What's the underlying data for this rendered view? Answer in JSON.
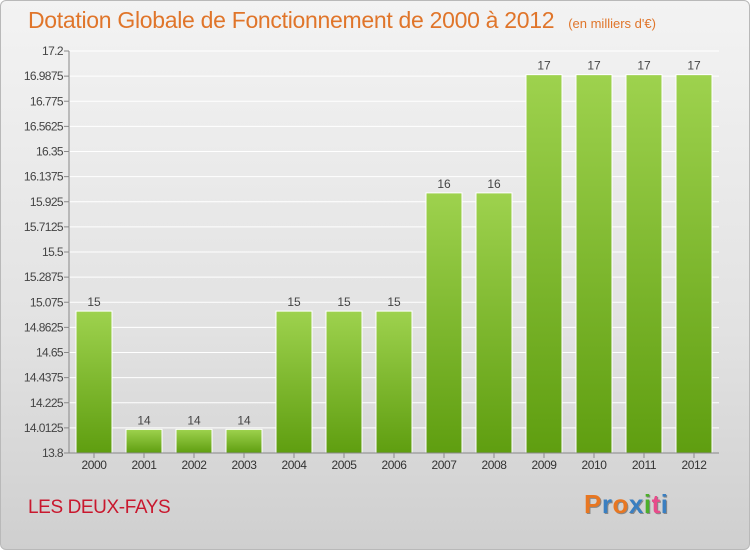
{
  "header": {
    "title": "Dotation Globale de Fonctionnement de 2000 à 2012",
    "unit": "(en milliers d'€)"
  },
  "footer": {
    "commune": "LES DEUX-FAYS",
    "logo_text": "Proxiti",
    "logo_colors": [
      "#e87722",
      "#3a7fc1",
      "#e87722",
      "#3a7fc1",
      "#4caf2a",
      "#e84c8b",
      "#3a7fc1"
    ]
  },
  "colors": {
    "bar_light": "#9ed24e",
    "bar_dark": "#5f9e10",
    "title": "#e0752a",
    "commune": "#c9182e"
  },
  "chart_data": {
    "type": "bar",
    "categories": [
      "2000",
      "2001",
      "2002",
      "2003",
      "2004",
      "2005",
      "2006",
      "2007",
      "2008",
      "2009",
      "2010",
      "2011",
      "2012"
    ],
    "values": [
      15,
      14,
      14,
      14,
      15,
      15,
      15,
      16,
      16,
      17,
      17,
      17,
      17
    ],
    "data_labels": [
      "15",
      "14",
      "14",
      "14",
      "15",
      "15",
      "15",
      "16",
      "16",
      "17",
      "17",
      "17",
      "17"
    ],
    "ylim": [
      13.8,
      17.2
    ],
    "yticks": [
      13.8,
      14.0125,
      14.225,
      14.4375,
      14.65,
      14.8625,
      15.075,
      15.2875,
      15.5,
      15.7125,
      15.925,
      16.1375,
      16.35,
      16.5625,
      16.775,
      16.9875,
      17.2
    ],
    "ytick_labels": [
      "13.8",
      "14.0125",
      "14.225",
      "14.4375",
      "14.65",
      "14.8625",
      "15.075",
      "15.2875",
      "15.5",
      "15.7125",
      "15.925",
      "16.1375",
      "16.35",
      "16.5625",
      "16.775",
      "16.9875",
      "17.2"
    ],
    "grid": true,
    "title": "Dotation Globale de Fonctionnement de 2000 à 2012",
    "xlabel": "",
    "ylabel": ""
  }
}
